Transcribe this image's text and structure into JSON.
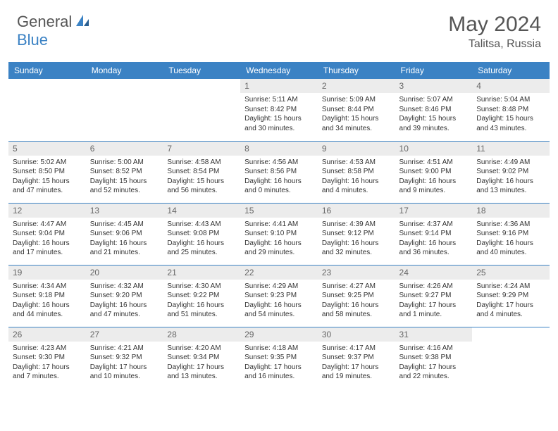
{
  "logo": {
    "text1": "General",
    "text2": "Blue"
  },
  "title": "May 2024",
  "location": "Talitsa, Russia",
  "colors": {
    "header_bg": "#3b82c4",
    "header_text": "#ffffff",
    "day_bg": "#ececec",
    "border": "#3b82c4",
    "text": "#333333",
    "logo_gray": "#555555",
    "logo_blue": "#3b82c4"
  },
  "day_headers": [
    "Sunday",
    "Monday",
    "Tuesday",
    "Wednesday",
    "Thursday",
    "Friday",
    "Saturday"
  ],
  "weeks": [
    [
      {
        "day": "",
        "sunrise": "",
        "sunset": "",
        "daylight": ""
      },
      {
        "day": "",
        "sunrise": "",
        "sunset": "",
        "daylight": ""
      },
      {
        "day": "",
        "sunrise": "",
        "sunset": "",
        "daylight": ""
      },
      {
        "day": "1",
        "sunrise": "5:11 AM",
        "sunset": "8:42 PM",
        "daylight": "15 hours and 30 minutes."
      },
      {
        "day": "2",
        "sunrise": "5:09 AM",
        "sunset": "8:44 PM",
        "daylight": "15 hours and 34 minutes."
      },
      {
        "day": "3",
        "sunrise": "5:07 AM",
        "sunset": "8:46 PM",
        "daylight": "15 hours and 39 minutes."
      },
      {
        "day": "4",
        "sunrise": "5:04 AM",
        "sunset": "8:48 PM",
        "daylight": "15 hours and 43 minutes."
      }
    ],
    [
      {
        "day": "5",
        "sunrise": "5:02 AM",
        "sunset": "8:50 PM",
        "daylight": "15 hours and 47 minutes."
      },
      {
        "day": "6",
        "sunrise": "5:00 AM",
        "sunset": "8:52 PM",
        "daylight": "15 hours and 52 minutes."
      },
      {
        "day": "7",
        "sunrise": "4:58 AM",
        "sunset": "8:54 PM",
        "daylight": "15 hours and 56 minutes."
      },
      {
        "day": "8",
        "sunrise": "4:56 AM",
        "sunset": "8:56 PM",
        "daylight": "16 hours and 0 minutes."
      },
      {
        "day": "9",
        "sunrise": "4:53 AM",
        "sunset": "8:58 PM",
        "daylight": "16 hours and 4 minutes."
      },
      {
        "day": "10",
        "sunrise": "4:51 AM",
        "sunset": "9:00 PM",
        "daylight": "16 hours and 9 minutes."
      },
      {
        "day": "11",
        "sunrise": "4:49 AM",
        "sunset": "9:02 PM",
        "daylight": "16 hours and 13 minutes."
      }
    ],
    [
      {
        "day": "12",
        "sunrise": "4:47 AM",
        "sunset": "9:04 PM",
        "daylight": "16 hours and 17 minutes."
      },
      {
        "day": "13",
        "sunrise": "4:45 AM",
        "sunset": "9:06 PM",
        "daylight": "16 hours and 21 minutes."
      },
      {
        "day": "14",
        "sunrise": "4:43 AM",
        "sunset": "9:08 PM",
        "daylight": "16 hours and 25 minutes."
      },
      {
        "day": "15",
        "sunrise": "4:41 AM",
        "sunset": "9:10 PM",
        "daylight": "16 hours and 29 minutes."
      },
      {
        "day": "16",
        "sunrise": "4:39 AM",
        "sunset": "9:12 PM",
        "daylight": "16 hours and 32 minutes."
      },
      {
        "day": "17",
        "sunrise": "4:37 AM",
        "sunset": "9:14 PM",
        "daylight": "16 hours and 36 minutes."
      },
      {
        "day": "18",
        "sunrise": "4:36 AM",
        "sunset": "9:16 PM",
        "daylight": "16 hours and 40 minutes."
      }
    ],
    [
      {
        "day": "19",
        "sunrise": "4:34 AM",
        "sunset": "9:18 PM",
        "daylight": "16 hours and 44 minutes."
      },
      {
        "day": "20",
        "sunrise": "4:32 AM",
        "sunset": "9:20 PM",
        "daylight": "16 hours and 47 minutes."
      },
      {
        "day": "21",
        "sunrise": "4:30 AM",
        "sunset": "9:22 PM",
        "daylight": "16 hours and 51 minutes."
      },
      {
        "day": "22",
        "sunrise": "4:29 AM",
        "sunset": "9:23 PM",
        "daylight": "16 hours and 54 minutes."
      },
      {
        "day": "23",
        "sunrise": "4:27 AM",
        "sunset": "9:25 PM",
        "daylight": "16 hours and 58 minutes."
      },
      {
        "day": "24",
        "sunrise": "4:26 AM",
        "sunset": "9:27 PM",
        "daylight": "17 hours and 1 minute."
      },
      {
        "day": "25",
        "sunrise": "4:24 AM",
        "sunset": "9:29 PM",
        "daylight": "17 hours and 4 minutes."
      }
    ],
    [
      {
        "day": "26",
        "sunrise": "4:23 AM",
        "sunset": "9:30 PM",
        "daylight": "17 hours and 7 minutes."
      },
      {
        "day": "27",
        "sunrise": "4:21 AM",
        "sunset": "9:32 PM",
        "daylight": "17 hours and 10 minutes."
      },
      {
        "day": "28",
        "sunrise": "4:20 AM",
        "sunset": "9:34 PM",
        "daylight": "17 hours and 13 minutes."
      },
      {
        "day": "29",
        "sunrise": "4:18 AM",
        "sunset": "9:35 PM",
        "daylight": "17 hours and 16 minutes."
      },
      {
        "day": "30",
        "sunrise": "4:17 AM",
        "sunset": "9:37 PM",
        "daylight": "17 hours and 19 minutes."
      },
      {
        "day": "31",
        "sunrise": "4:16 AM",
        "sunset": "9:38 PM",
        "daylight": "17 hours and 22 minutes."
      },
      {
        "day": "",
        "sunrise": "",
        "sunset": "",
        "daylight": ""
      }
    ]
  ],
  "labels": {
    "sunrise": "Sunrise:",
    "sunset": "Sunset:",
    "daylight": "Daylight:"
  }
}
